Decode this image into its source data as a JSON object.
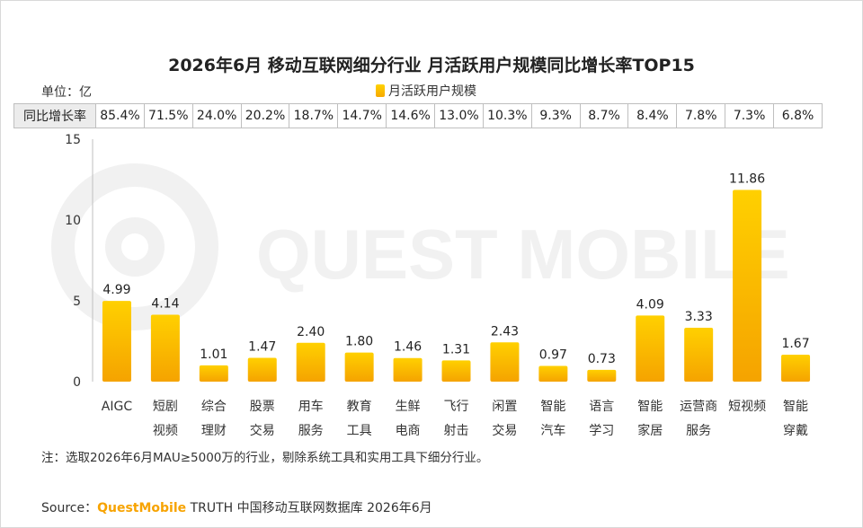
{
  "title": "2026年6月 移动互联网细分行业 月活跃用户规模同比增长率TOP15",
  "unit_label": "单位：亿",
  "watermark_text": "QUEST MOBILE",
  "growth_row": {
    "header": "同比增长率",
    "values": [
      "85.4%",
      "71.5%",
      "24.0%",
      "20.2%",
      "18.7%",
      "14.7%",
      "14.6%",
      "13.0%",
      "10.3%",
      "9.3%",
      "8.7%",
      "8.4%",
      "7.8%",
      "7.3%",
      "6.8%"
    ]
  },
  "chart_data": {
    "type": "bar",
    "categories": [
      "AIGC",
      "短剧视频",
      "综合理财",
      "股票交易",
      "用车服务",
      "教育工具",
      "生鲜电商",
      "飞行射击",
      "闲置交易",
      "智能汽车",
      "语言学习",
      "智能家居",
      "运营商服务",
      "短视频",
      "智能穿戴"
    ],
    "category_lines": [
      [
        "AIGC"
      ],
      [
        "短剧",
        "视频"
      ],
      [
        "综合",
        "理财"
      ],
      [
        "股票",
        "交易"
      ],
      [
        "用车",
        "服务"
      ],
      [
        "教育",
        "工具"
      ],
      [
        "生鲜",
        "电商"
      ],
      [
        "飞行",
        "射击"
      ],
      [
        "闲置",
        "交易"
      ],
      [
        "智能",
        "汽车"
      ],
      [
        "语言",
        "学习"
      ],
      [
        "智能",
        "家居"
      ],
      [
        "运营商",
        "服务"
      ],
      [
        "短视频"
      ],
      [
        "智能",
        "穿戴"
      ]
    ],
    "series": [
      {
        "name": "月活跃用户规模",
        "values": [
          4.99,
          4.14,
          1.01,
          1.47,
          2.4,
          1.8,
          1.46,
          1.31,
          2.43,
          0.97,
          0.73,
          4.09,
          3.33,
          11.86,
          1.67
        ]
      }
    ],
    "data_labels": [
      "4.99",
      "4.14",
      "1.01",
      "1.47",
      "2.40",
      "1.80",
      "1.46",
      "1.31",
      "2.43",
      "0.97",
      "0.73",
      "4.09",
      "3.33",
      "11.86",
      "1.67"
    ],
    "yticks": [
      "0",
      "5",
      "10",
      "15"
    ],
    "ylim": [
      0,
      15
    ],
    "grid": false,
    "legend_position": "top-center",
    "bar_color_top": "#ffd000",
    "bar_color_bottom": "#f5a300"
  },
  "note": "注：选取2026年6月MAU≥5000万的行业，剔除系统工具和实用工具下细分行业。",
  "source": {
    "prefix": "Source：",
    "brand": "QuestMobile",
    "suffix": " TRUTH 中国移动互联网数据库 2026年6月"
  }
}
